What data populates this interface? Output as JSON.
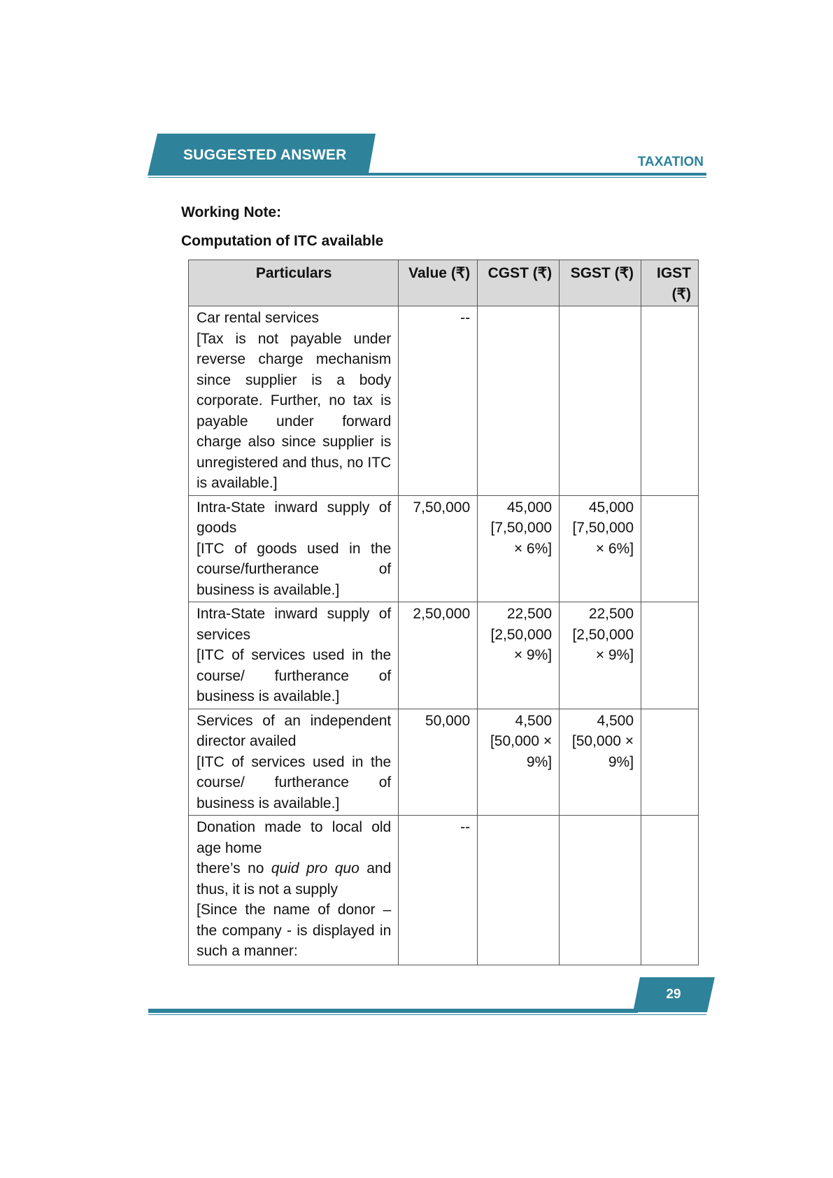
{
  "header": {
    "title": "SUGGESTED ANSWER",
    "subject": "TAXATION",
    "accent": "#2e839b"
  },
  "headings": {
    "working_note": "Working Note:",
    "computation": "Computation of ITC available"
  },
  "table": {
    "columns": [
      "Particulars",
      "Value (₹)",
      "CGST (₹)",
      "SGST (₹)",
      "IGST (₹)"
    ],
    "rows": [
      {
        "particulars": [
          "Car rental services",
          "[Tax is not payable under reverse charge mechanism since supplier is a body corporate. Further, no tax is payable under forward charge also since supplier is unregistered and thus, no ITC is available.]"
        ],
        "value": "--",
        "cgst": "",
        "sgst": "",
        "igst": ""
      },
      {
        "particulars": [
          "Intra-State inward supply of goods",
          "[ITC of goods used in the course/furtherance of business is available.]"
        ],
        "value": "7,50,000",
        "cgst": "45,000 [7,50,000 × 6%]",
        "sgst": "45,000 [7,50,000 × 6%]",
        "igst": ""
      },
      {
        "particulars": [
          "Intra-State inward supply of services",
          "[ITC of services used in the course/ furtherance of business is available.]"
        ],
        "value": "2,50,000",
        "cgst": "22,500 [2,50,000 × 9%]",
        "sgst": "22,500 [2,50,000 × 9%]",
        "igst": ""
      },
      {
        "particulars": [
          "Services of an independent director availed",
          "[ITC of services used in the course/ furtherance of business is available.]"
        ],
        "value": "50,000",
        "cgst": "4,500 [50,000 × 9%]",
        "sgst": "4,500 [50,000 × 9%]",
        "igst": ""
      },
      {
        "particulars": [
          "Donation made to local old age home",
          "there’s no quid pro quo and thus, it is not a supply",
          "[Since the name of donor – the company - is displayed in such a manner:"
        ],
        "value": "--",
        "cgst": "",
        "sgst": "",
        "igst": ""
      }
    ]
  },
  "footer": {
    "page": "29"
  }
}
